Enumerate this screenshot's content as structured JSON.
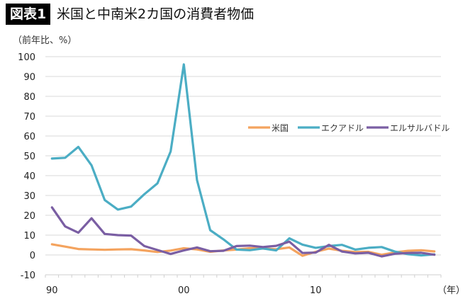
{
  "header": {
    "badge": "図表1",
    "title": "米国と中南米2カ国の消費者物価"
  },
  "axes": {
    "y_unit": "（前年比、%）",
    "x_unit": "（年）"
  },
  "colors": {
    "us": "#F4A35E",
    "ecuador": "#4BADC4",
    "el_salvador": "#7A5EA3",
    "grid": "#d9d9d9"
  },
  "chart_data": {
    "type": "line",
    "title": "米国と中南米2カ国の消費者物価",
    "xlabel": "（年）",
    "ylabel": "（前年比、%）",
    "ylim": [
      -10,
      100
    ],
    "yticks": [
      100,
      90,
      80,
      70,
      60,
      50,
      40,
      30,
      20,
      10,
      0,
      -10
    ],
    "xtick_labels": [
      {
        "label": "90",
        "year": 1990
      },
      {
        "label": "00",
        "year": 2000
      },
      {
        "label": "10",
        "year": 2010
      }
    ],
    "grid": true,
    "legend_position": "upper right (inside plot)",
    "x": [
      1990,
      1991,
      1992,
      1993,
      1994,
      1995,
      1996,
      1997,
      1998,
      1999,
      2000,
      2001,
      2002,
      2003,
      2004,
      2005,
      2006,
      2007,
      2008,
      2009,
      2010,
      2011,
      2012,
      2013,
      2014,
      2015,
      2016,
      2017,
      2018,
      2019
    ],
    "series": [
      {
        "name": "米国",
        "color": "#F4A35E",
        "values": [
          5.4,
          4.2,
          3.0,
          2.8,
          2.6,
          2.8,
          2.9,
          2.3,
          1.5,
          2.2,
          3.4,
          2.8,
          1.6,
          2.3,
          2.7,
          3.4,
          3.2,
          2.9,
          3.8,
          -0.4,
          1.6,
          3.2,
          2.1,
          1.5,
          1.6,
          0.1,
          1.3,
          2.1,
          2.4,
          1.8
        ]
      },
      {
        "name": "エクアドル",
        "color": "#4BADC4",
        "values": [
          48.6,
          49.0,
          54.5,
          45.2,
          27.7,
          22.9,
          24.4,
          30.6,
          36.1,
          52.2,
          96.1,
          37.7,
          12.5,
          7.9,
          2.7,
          2.4,
          3.3,
          2.3,
          8.4,
          5.2,
          3.6,
          4.5,
          5.1,
          2.7,
          3.6,
          4.0,
          1.7,
          0.4,
          -0.2,
          0.3
        ]
      },
      {
        "name": "エルサルバドル",
        "color": "#7A5EA3",
        "values": [
          24.0,
          14.4,
          11.2,
          18.5,
          10.6,
          10.0,
          9.8,
          4.5,
          2.5,
          0.5,
          2.3,
          3.8,
          1.9,
          2.1,
          4.5,
          4.7,
          4.0,
          4.6,
          6.7,
          1.0,
          1.2,
          5.1,
          1.7,
          0.8,
          1.1,
          -0.7,
          0.6,
          1.0,
          1.1,
          0.1
        ]
      }
    ]
  },
  "legend": [
    {
      "label": "米国",
      "color": "#F4A35E"
    },
    {
      "label": "エクアドル",
      "color": "#4BADC4"
    },
    {
      "label": "エルサルバドル",
      "color": "#7A5EA3"
    }
  ]
}
